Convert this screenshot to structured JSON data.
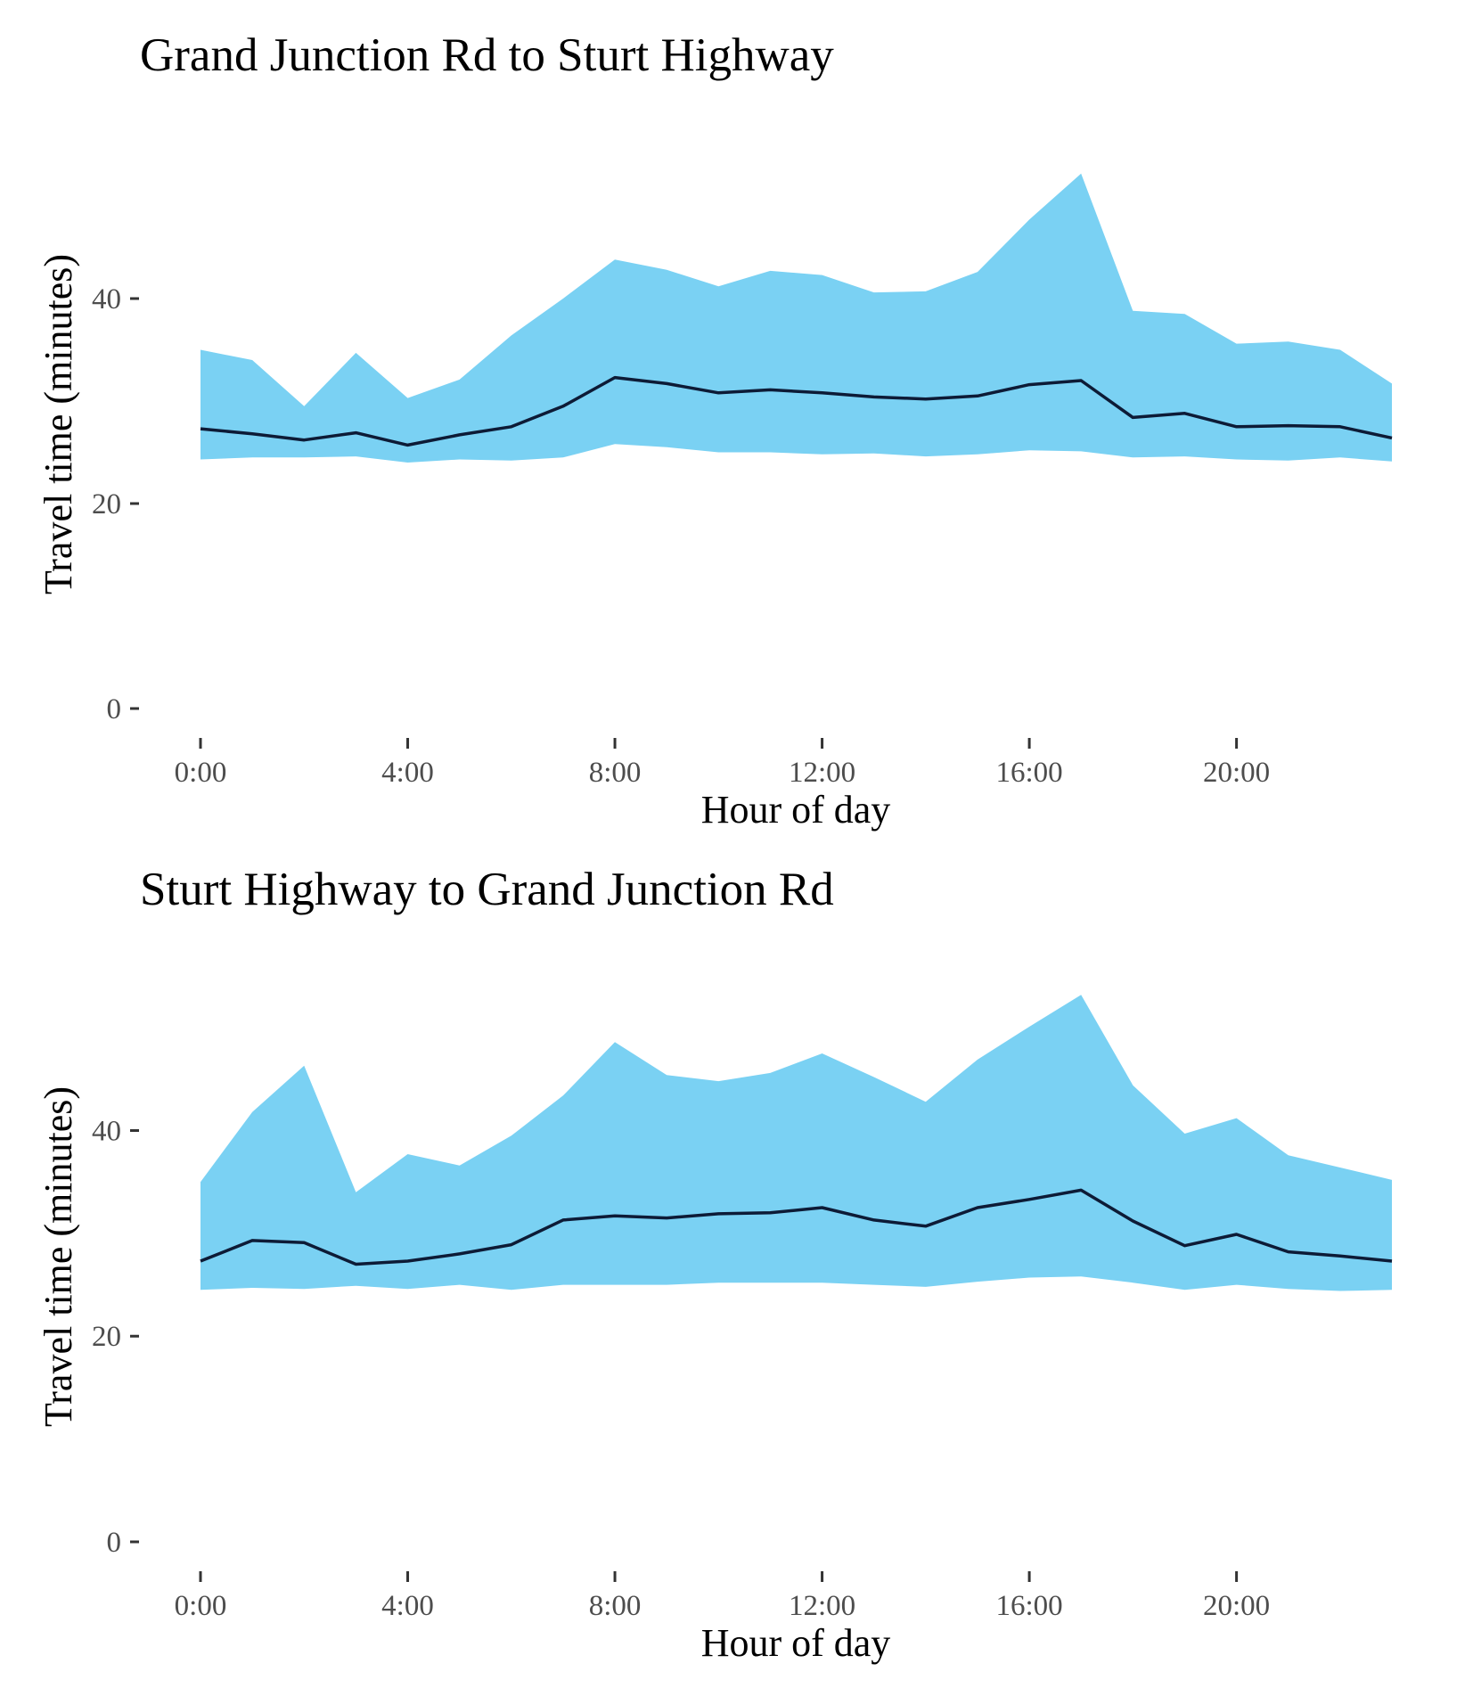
{
  "colors": {
    "band": "#7ad1f3",
    "line": "#0d1b36",
    "tick_text": "#4d4d4d",
    "tick_mark": "#333333",
    "background": "#ffffff"
  },
  "chart_data": [
    {
      "type": "area",
      "title": "Grand Junction Rd to Sturt Highway",
      "xlabel": "Hour of day",
      "ylabel": "Travel time (minutes)",
      "xlim": [
        0,
        23
      ],
      "ylim": [
        0,
        53
      ],
      "grid": false,
      "legend": "none",
      "x_ticks": [
        0,
        4,
        8,
        12,
        16,
        20
      ],
      "x_tick_labels": [
        "0:00",
        "4:00",
        "8:00",
        "12:00",
        "16:00",
        "20:00"
      ],
      "y_ticks": [
        0,
        20,
        40
      ],
      "y_tick_labels": [
        "0",
        "20",
        "40"
      ],
      "x": [
        0,
        1,
        2,
        3,
        4,
        5,
        6,
        7,
        8,
        9,
        10,
        11,
        12,
        13,
        14,
        15,
        16,
        17,
        18,
        19,
        20,
        21,
        22,
        23
      ],
      "series": [
        {
          "role": "upper",
          "values": [
            35.0,
            34.0,
            29.5,
            34.7,
            30.3,
            32.1,
            36.4,
            40.0,
            43.8,
            42.8,
            41.2,
            42.7,
            42.3,
            40.6,
            40.7,
            42.6,
            47.7,
            52.2,
            38.8,
            38.5,
            35.6,
            35.8,
            35.0,
            31.7
          ]
        },
        {
          "role": "lower",
          "values": [
            24.3,
            24.5,
            24.5,
            24.6,
            24.0,
            24.3,
            24.2,
            24.5,
            25.8,
            25.5,
            25.0,
            25.0,
            24.8,
            24.9,
            24.6,
            24.8,
            25.2,
            25.1,
            24.5,
            24.6,
            24.3,
            24.2,
            24.5,
            24.1
          ]
        },
        {
          "role": "median",
          "values": [
            27.3,
            26.8,
            26.2,
            26.9,
            25.7,
            26.7,
            27.5,
            29.5,
            32.3,
            31.7,
            30.8,
            31.1,
            30.8,
            30.4,
            30.2,
            30.5,
            31.6,
            32.0,
            28.4,
            28.8,
            27.5,
            27.6,
            27.5,
            26.4
          ]
        }
      ]
    },
    {
      "type": "area",
      "title": "Sturt Highway to Grand Junction Rd",
      "xlabel": "Hour of day",
      "ylabel": "Travel time (minutes)",
      "xlim": [
        0,
        23
      ],
      "ylim": [
        0,
        53
      ],
      "grid": false,
      "legend": "none",
      "x_ticks": [
        0,
        4,
        8,
        12,
        16,
        20
      ],
      "x_tick_labels": [
        "0:00",
        "4:00",
        "8:00",
        "12:00",
        "16:00",
        "20:00"
      ],
      "y_ticks": [
        0,
        20,
        40
      ],
      "y_tick_labels": [
        "0",
        "20",
        "40"
      ],
      "x": [
        0,
        1,
        2,
        3,
        4,
        5,
        6,
        7,
        8,
        9,
        10,
        11,
        12,
        13,
        14,
        15,
        16,
        17,
        18,
        19,
        20,
        21,
        22,
        23
      ],
      "series": [
        {
          "role": "upper",
          "values": [
            35.0,
            41.8,
            46.3,
            34.0,
            37.7,
            36.6,
            39.5,
            43.4,
            48.6,
            45.4,
            44.8,
            45.6,
            47.5,
            45.2,
            42.8,
            46.9,
            50.1,
            53.2,
            44.4,
            39.7,
            41.2,
            37.6,
            36.4,
            35.2
          ]
        },
        {
          "role": "lower",
          "values": [
            24.5,
            24.7,
            24.6,
            24.9,
            24.6,
            25.0,
            24.5,
            25.0,
            25.0,
            25.0,
            25.2,
            25.2,
            25.2,
            25.0,
            24.8,
            25.3,
            25.7,
            25.8,
            25.2,
            24.5,
            25.0,
            24.6,
            24.4,
            24.5
          ]
        },
        {
          "role": "median",
          "values": [
            27.3,
            29.3,
            29.1,
            27.0,
            27.3,
            28.0,
            28.9,
            31.3,
            31.7,
            31.5,
            31.9,
            32.0,
            32.5,
            31.3,
            30.7,
            32.5,
            33.3,
            34.2,
            31.2,
            28.8,
            29.9,
            28.2,
            27.8,
            27.3
          ]
        }
      ]
    }
  ]
}
